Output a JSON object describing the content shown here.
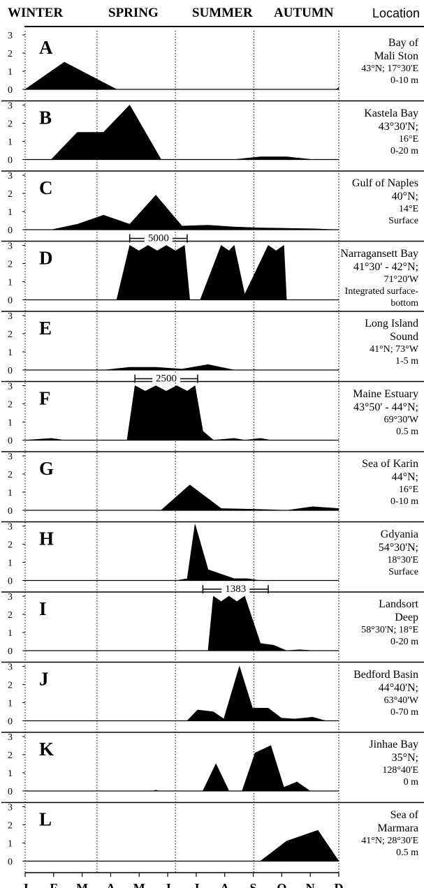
{
  "header": {
    "seasons": [
      "WINTER",
      "SPRING",
      "SUMMER",
      "AUTUMN"
    ],
    "location_label": "Location"
  },
  "chart_data": {
    "type": "area",
    "x_axis": {
      "months": [
        "J",
        "F",
        "M",
        "A",
        "M",
        "J",
        "J",
        "A",
        "S",
        "O",
        "N",
        "D"
      ]
    },
    "y_axis": {
      "ticks": [
        0,
        1,
        2,
        3
      ],
      "ylim": [
        0,
        3
      ]
    },
    "panels": [
      {
        "letter": "A",
        "location": [
          "Bay of",
          "Mali Ston",
          "43°N; 17°30'E",
          "0-10 m"
        ],
        "points": [
          [
            0,
            0
          ],
          [
            1.5,
            1.5
          ],
          [
            3.5,
            0
          ],
          [
            11.9,
            0
          ],
          [
            12,
            0.1
          ],
          [
            12,
            0
          ]
        ]
      },
      {
        "letter": "B",
        "location": [
          "Kastela Bay",
          "43°30'N;",
          "16°E",
          "0-20 m"
        ],
        "points": [
          [
            0,
            0
          ],
          [
            1,
            0
          ],
          [
            2,
            1.5
          ],
          [
            3,
            1.5
          ],
          [
            4,
            3
          ],
          [
            5.2,
            0
          ],
          [
            8,
            0
          ],
          [
            9,
            0.15
          ],
          [
            10,
            0.15
          ],
          [
            11,
            0
          ],
          [
            12,
            0
          ]
        ]
      },
      {
        "letter": "C",
        "location": [
          "Gulf of Naples",
          "40°N;",
          "14°E",
          "Surface"
        ],
        "points": [
          [
            0,
            0
          ],
          [
            1,
            0
          ],
          [
            2,
            0.3
          ],
          [
            3,
            0.8
          ],
          [
            4,
            0.3
          ],
          [
            5,
            1.9
          ],
          [
            6,
            0.2
          ],
          [
            7,
            0.25
          ],
          [
            8,
            0.15
          ],
          [
            9,
            0.1
          ],
          [
            11,
            0.05
          ],
          [
            12,
            0
          ]
        ]
      },
      {
        "letter": "D",
        "location": [
          "Narragansett Bay",
          "41°30' - 42°N;",
          "71°20'W",
          "Integrated surface-bottom"
        ],
        "points": [
          [
            0,
            0
          ],
          [
            3.5,
            0
          ],
          [
            4,
            3
          ],
          [
            4.35,
            2.7
          ],
          [
            4.7,
            3
          ],
          [
            5.05,
            2.7
          ],
          [
            5.4,
            3
          ],
          [
            5.75,
            2.7
          ],
          [
            6.1,
            3
          ],
          [
            6.3,
            0
          ],
          [
            6.7,
            0
          ],
          [
            7.5,
            3
          ],
          [
            7.8,
            2.7
          ],
          [
            8,
            3
          ],
          [
            8.4,
            0.3
          ],
          [
            9.3,
            3
          ],
          [
            9.6,
            2.7
          ],
          [
            9.9,
            3
          ],
          [
            10,
            0
          ],
          [
            12,
            0
          ]
        ],
        "bracket": {
          "x0": 4,
          "x1": 6.2,
          "label": "5000"
        }
      },
      {
        "letter": "E",
        "location": [
          "Long Island",
          "Sound",
          "41°N; 73°W",
          "1-5 m"
        ],
        "points": [
          [
            0,
            0
          ],
          [
            3,
            0
          ],
          [
            4,
            0.15
          ],
          [
            5,
            0.15
          ],
          [
            6,
            0.05
          ],
          [
            7,
            0.3
          ],
          [
            8,
            0
          ],
          [
            12,
            0
          ]
        ]
      },
      {
        "letter": "F",
        "location": [
          "Maine Estuary",
          "43°50' - 44°N;",
          "69°30'W",
          "0.5 m"
        ],
        "points": [
          [
            0,
            0
          ],
          [
            1,
            0.1
          ],
          [
            1.5,
            0
          ],
          [
            3.9,
            0
          ],
          [
            4.2,
            3
          ],
          [
            4.6,
            2.7
          ],
          [
            5,
            3
          ],
          [
            5.4,
            2.7
          ],
          [
            5.8,
            3
          ],
          [
            6.2,
            2.7
          ],
          [
            6.5,
            3
          ],
          [
            6.8,
            0.5
          ],
          [
            7.2,
            0
          ],
          [
            8,
            0.1
          ],
          [
            8.4,
            0
          ],
          [
            9,
            0.1
          ],
          [
            9.4,
            0
          ],
          [
            12,
            0
          ]
        ],
        "bracket": {
          "x0": 4.2,
          "x1": 6.6,
          "label": "2500"
        }
      },
      {
        "letter": "G",
        "location": [
          "Sea of Karin",
          "44°N;",
          "16°E",
          "0-10 m"
        ],
        "points": [
          [
            0,
            0
          ],
          [
            5.2,
            0
          ],
          [
            6.3,
            1.4
          ],
          [
            7.5,
            0.1
          ],
          [
            9,
            0.05
          ],
          [
            10,
            0
          ],
          [
            11,
            0.2
          ],
          [
            12,
            0.1
          ],
          [
            12,
            0
          ]
        ]
      },
      {
        "letter": "H",
        "location": [
          "Gdyania",
          "54°30'N;",
          "18°30'E",
          "Surface"
        ],
        "points": [
          [
            0,
            0
          ],
          [
            5.8,
            0
          ],
          [
            6.2,
            0.1
          ],
          [
            6.5,
            3.1
          ],
          [
            7,
            0.6
          ],
          [
            8,
            0.1
          ],
          [
            8.5,
            0.1
          ],
          [
            9,
            0
          ],
          [
            12,
            0
          ]
        ]
      },
      {
        "letter": "I",
        "location": [
          "Landsort",
          "Deep",
          "58°30'N; 18°E",
          "0-20 m"
        ],
        "points": [
          [
            0,
            0
          ],
          [
            7,
            0
          ],
          [
            7.2,
            3
          ],
          [
            7.5,
            2.7
          ],
          [
            7.8,
            3
          ],
          [
            8.1,
            2.7
          ],
          [
            8.4,
            3
          ],
          [
            9,
            0.4
          ],
          [
            9.5,
            0.3
          ],
          [
            10,
            0
          ],
          [
            10.5,
            0.05
          ],
          [
            11,
            0
          ],
          [
            12,
            0
          ]
        ],
        "bracket": {
          "x0": 6.8,
          "x1": 9.3,
          "label": "1383"
        }
      },
      {
        "letter": "J",
        "location": [
          "Bedford Basin",
          "44°40'N;",
          "63°40'W",
          "0-70 m"
        ],
        "points": [
          [
            0,
            0
          ],
          [
            6.2,
            0
          ],
          [
            6.6,
            0.6
          ],
          [
            7.2,
            0.5
          ],
          [
            7.6,
            0.1
          ],
          [
            8.2,
            3
          ],
          [
            8.7,
            0.7
          ],
          [
            9.3,
            0.7
          ],
          [
            9.8,
            0.15
          ],
          [
            10.3,
            0.1
          ],
          [
            11,
            0.2
          ],
          [
            11.5,
            0
          ],
          [
            12,
            0
          ]
        ]
      },
      {
        "letter": "K",
        "location": [
          "Jinhae Bay",
          "35°N;",
          "128°40'E",
          "0 m"
        ],
        "points": [
          [
            0,
            0
          ],
          [
            4.9,
            0
          ],
          [
            5,
            0.05
          ],
          [
            5.1,
            0
          ],
          [
            6.8,
            0
          ],
          [
            7.3,
            1.5
          ],
          [
            7.8,
            0
          ],
          [
            8.3,
            0
          ],
          [
            8.8,
            2.1
          ],
          [
            9.4,
            2.5
          ],
          [
            9.9,
            0.2
          ],
          [
            10.4,
            0.5
          ],
          [
            10.9,
            0
          ],
          [
            12,
            0
          ]
        ]
      },
      {
        "letter": "L",
        "location": [
          "Sea of",
          "Marmara",
          "41°N; 28°30'E",
          "0.5 m"
        ],
        "points": [
          [
            0,
            0
          ],
          [
            9,
            0
          ],
          [
            10,
            1.1
          ],
          [
            11.2,
            1.7
          ],
          [
            12,
            0
          ]
        ]
      }
    ]
  }
}
